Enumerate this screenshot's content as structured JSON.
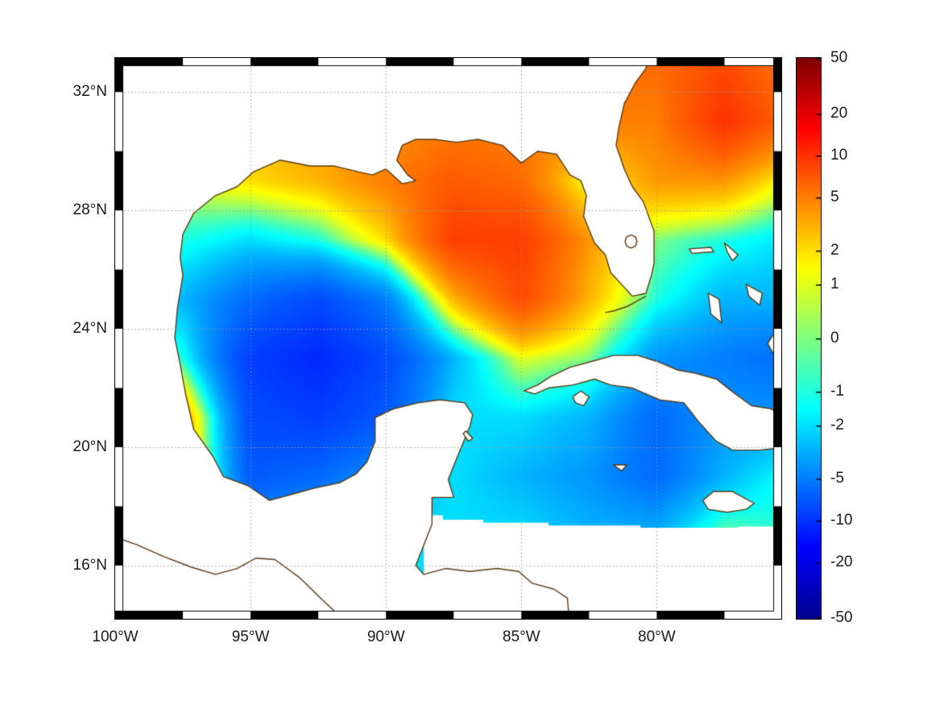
{
  "figure": {
    "background": "#ffffff"
  },
  "map": {
    "extent": {
      "lon_min": -100,
      "lon_max": -75.4,
      "lat_min": 14.2,
      "lat_max": 33.15
    },
    "xticks": [
      {
        "label": "100°W",
        "lon": -100
      },
      {
        "label": "95°W",
        "lon": -95
      },
      {
        "label": "90°W",
        "lon": -90
      },
      {
        "label": "85°W",
        "lon": -85
      },
      {
        "label": "80°W",
        "lon": -80
      }
    ],
    "yticks": [
      {
        "label": "32°N",
        "lat": 32
      },
      {
        "label": "28°N",
        "lat": 28
      },
      {
        "label": "24°N",
        "lat": 24
      },
      {
        "label": "20°N",
        "lat": 20
      },
      {
        "label": "16°N",
        "lat": 16
      }
    ],
    "grid_lons": [
      -95,
      -90,
      -85,
      -80
    ],
    "grid_lats": [
      16,
      20,
      24,
      28,
      32
    ],
    "grid_color": "#9a9a9a",
    "frame_style": "black-white-zebra"
  },
  "colorbar": {
    "ticks": [
      {
        "label": "50",
        "value": 50
      },
      {
        "label": "20",
        "value": 20
      },
      {
        "label": "10",
        "value": 10
      },
      {
        "label": "5",
        "value": 5
      },
      {
        "label": "2",
        "value": 2
      },
      {
        "label": "1",
        "value": 1
      },
      {
        "label": "0",
        "value": 0
      },
      {
        "label": "-1",
        "value": -1
      },
      {
        "label": "-2",
        "value": -2
      },
      {
        "label": "-5",
        "value": -5
      },
      {
        "label": "-10",
        "value": -10
      },
      {
        "label": "-20",
        "value": -20
      },
      {
        "label": "-50",
        "value": -50
      }
    ],
    "scale": "asinh",
    "range": [
      -50,
      50
    ]
  },
  "chart_data": {
    "type": "heatmap",
    "title": "",
    "region": "Gulf of Mexico and northwest Caribbean",
    "colormap": "jet",
    "colormap_stops": [
      [
        0,
        0,
        0,
        143
      ],
      [
        0.125,
        0,
        0,
        255
      ],
      [
        0.375,
        0,
        255,
        255
      ],
      [
        0.625,
        255,
        255,
        0
      ],
      [
        0.875,
        255,
        0,
        0
      ],
      [
        1,
        128,
        0,
        0
      ]
    ],
    "value_scale": "asinh",
    "value_range": [
      -50,
      50
    ],
    "colorbar_ticks": [
      50,
      20,
      10,
      5,
      2,
      1,
      0,
      -1,
      -2,
      -5,
      -10,
      -20,
      -50
    ],
    "extent": {
      "lon_min": -100,
      "lon_max": -75.4,
      "lat_min": 14.2,
      "lat_max": 33.15
    },
    "grid_lons": [
      -100,
      -97.5,
      -95,
      -92.5,
      -90,
      -87.5,
      -85,
      -82.5,
      -80,
      -77.5,
      -75
    ],
    "grid_lats": [
      33,
      31,
      29,
      27,
      25,
      23,
      21,
      19,
      17,
      15
    ],
    "values": [
      [
        5,
        5,
        5,
        5,
        5,
        5,
        5,
        6,
        6,
        8,
        5
      ],
      [
        3,
        3,
        3,
        4,
        4,
        5,
        5,
        5,
        5,
        10,
        6
      ],
      [
        1,
        1,
        2,
        3,
        5,
        7,
        6,
        1,
        4,
        4,
        1
      ],
      [
        0,
        -1,
        -2,
        -1,
        2,
        9,
        9,
        4,
        0,
        -1,
        -2
      ],
      [
        -2,
        -3,
        -6,
        -8,
        -5,
        3,
        8,
        3,
        -1,
        -3,
        -3
      ],
      [
        0,
        -1,
        -9,
        -11,
        -8,
        -3,
        1,
        0,
        -4,
        -5,
        -6
      ],
      [
        1,
        4,
        -8,
        -9,
        -7,
        -2,
        -2,
        -3,
        -6,
        -4,
        -4
      ],
      [
        2,
        4,
        -7,
        -6,
        -4,
        -2,
        -3,
        -4,
        -6,
        -3,
        -1
      ],
      [
        2,
        2,
        -4,
        -3,
        -2,
        -2,
        -2,
        -3,
        -3,
        0,
        -1
      ],
      [
        1,
        0,
        -2,
        -2,
        -2,
        -2,
        -2,
        -2,
        -2,
        -1,
        -1
      ]
    ]
  },
  "geo": {
    "coast_color": "#5a3a12",
    "land_fill": "#ffffff",
    "polygons": [
      {
        "name": "no-data-caribbean-south",
        "fill": true,
        "stroke": false,
        "closed": true,
        "pts": [
          [
            -88.6,
            13.9
          ],
          [
            -88.6,
            17.7
          ],
          [
            -87.9,
            17.7
          ],
          [
            -87.9,
            17.55
          ],
          [
            -86.4,
            17.55
          ],
          [
            -86.4,
            17.45
          ],
          [
            -84.0,
            17.45
          ],
          [
            -84.0,
            17.35
          ],
          [
            -80.6,
            17.35
          ],
          [
            -80.6,
            17.28
          ],
          [
            -77.0,
            17.28
          ],
          [
            -77.0,
            17.32
          ],
          [
            -75.2,
            17.32
          ],
          [
            -75.2,
            13.9
          ]
        ]
      },
      {
        "name": "north-america-mainland",
        "fill": true,
        "stroke": true,
        "closed": true,
        "pts": [
          [
            -100.4,
            33.4
          ],
          [
            -80.2,
            33.4
          ],
          [
            -80.4,
            32.8
          ],
          [
            -80.8,
            32.3
          ],
          [
            -81.2,
            31.6
          ],
          [
            -81.4,
            30.8
          ],
          [
            -81.5,
            30.2
          ],
          [
            -81.2,
            29.4
          ],
          [
            -80.9,
            28.8
          ],
          [
            -80.5,
            28.3
          ],
          [
            -80.1,
            27.3
          ],
          [
            -80.1,
            26.2
          ],
          [
            -80.2,
            25.8
          ],
          [
            -80.4,
            25.2
          ],
          [
            -80.9,
            25.1
          ],
          [
            -81.2,
            25.4
          ],
          [
            -81.7,
            25.9
          ],
          [
            -81.9,
            26.5
          ],
          [
            -82.3,
            26.9
          ],
          [
            -82.7,
            27.8
          ],
          [
            -82.6,
            28.5
          ],
          [
            -82.8,
            29.0
          ],
          [
            -83.2,
            29.2
          ],
          [
            -83.7,
            29.9
          ],
          [
            -84.4,
            30.0
          ],
          [
            -85.0,
            29.6
          ],
          [
            -85.7,
            30.2
          ],
          [
            -86.6,
            30.4
          ],
          [
            -87.4,
            30.3
          ],
          [
            -88.2,
            30.4
          ],
          [
            -88.9,
            30.4
          ],
          [
            -89.4,
            30.2
          ],
          [
            -89.6,
            29.7
          ],
          [
            -89.2,
            29.2
          ],
          [
            -88.9,
            29.0
          ],
          [
            -89.4,
            28.9
          ],
          [
            -90.0,
            29.4
          ],
          [
            -90.5,
            29.2
          ],
          [
            -91.0,
            29.3
          ],
          [
            -91.9,
            29.5
          ],
          [
            -92.8,
            29.5
          ],
          [
            -93.9,
            29.7
          ],
          [
            -94.9,
            29.3
          ],
          [
            -95.5,
            28.8
          ],
          [
            -96.3,
            28.5
          ],
          [
            -97.1,
            27.9
          ],
          [
            -97.5,
            27.2
          ],
          [
            -97.6,
            26.4
          ],
          [
            -97.5,
            25.8
          ],
          [
            -97.7,
            24.7
          ],
          [
            -97.8,
            23.7
          ],
          [
            -97.6,
            22.8
          ],
          [
            -97.4,
            21.8
          ],
          [
            -97.1,
            20.6
          ],
          [
            -96.4,
            19.7
          ],
          [
            -96.0,
            19.0
          ],
          [
            -95.1,
            18.7
          ],
          [
            -94.3,
            18.2
          ],
          [
            -93.5,
            18.4
          ],
          [
            -92.7,
            18.6
          ],
          [
            -91.7,
            18.8
          ],
          [
            -91.1,
            19.1
          ],
          [
            -90.7,
            19.5
          ],
          [
            -90.4,
            20.2
          ],
          [
            -90.4,
            21.0
          ],
          [
            -89.7,
            21.3
          ],
          [
            -88.8,
            21.5
          ],
          [
            -88.0,
            21.6
          ],
          [
            -87.1,
            21.5
          ],
          [
            -86.8,
            21.1
          ],
          [
            -86.9,
            20.7
          ],
          [
            -87.4,
            19.6
          ],
          [
            -87.7,
            18.9
          ],
          [
            -87.5,
            18.3
          ],
          [
            -88.3,
            18.3
          ],
          [
            -88.3,
            17.4
          ],
          [
            -88.9,
            16.0
          ],
          [
            -88.6,
            15.7
          ],
          [
            -87.8,
            15.9
          ],
          [
            -86.9,
            15.8
          ],
          [
            -85.9,
            15.9
          ],
          [
            -85.1,
            15.8
          ],
          [
            -84.6,
            15.4
          ],
          [
            -83.8,
            15.2
          ],
          [
            -83.3,
            14.9
          ],
          [
            -83.2,
            13.8
          ],
          [
            -100.4,
            13.8
          ]
        ]
      },
      {
        "name": "pacific-coast-mexico",
        "fill": false,
        "stroke": true,
        "closed": false,
        "pts": [
          [
            -100.4,
            17.1
          ],
          [
            -99.2,
            16.7
          ],
          [
            -98.2,
            16.3
          ],
          [
            -97.2,
            15.95
          ],
          [
            -96.3,
            15.7
          ],
          [
            -95.5,
            15.9
          ],
          [
            -94.8,
            16.25
          ],
          [
            -94.1,
            16.2
          ],
          [
            -93.2,
            15.6
          ],
          [
            -92.3,
            14.8
          ],
          [
            -91.6,
            14.2
          ],
          [
            -91.2,
            13.8
          ]
        ]
      },
      {
        "name": "cuba",
        "fill": true,
        "stroke": true,
        "closed": true,
        "pts": [
          [
            -84.9,
            21.9
          ],
          [
            -84.4,
            22.1
          ],
          [
            -83.9,
            22.4
          ],
          [
            -83.2,
            22.7
          ],
          [
            -82.4,
            22.9
          ],
          [
            -81.6,
            23.1
          ],
          [
            -80.7,
            23.1
          ],
          [
            -80.0,
            22.9
          ],
          [
            -79.2,
            22.6
          ],
          [
            -78.6,
            22.5
          ],
          [
            -77.8,
            22.3
          ],
          [
            -77.1,
            21.8
          ],
          [
            -76.5,
            21.4
          ],
          [
            -75.8,
            21.3
          ],
          [
            -75.2,
            21.0
          ],
          [
            -75.2,
            20.0
          ],
          [
            -76.2,
            19.9
          ],
          [
            -77.2,
            19.9
          ],
          [
            -77.8,
            20.2
          ],
          [
            -78.4,
            20.8
          ],
          [
            -79.0,
            21.5
          ],
          [
            -79.9,
            21.6
          ],
          [
            -80.9,
            22.0
          ],
          [
            -81.7,
            22.1
          ],
          [
            -82.3,
            22.3
          ],
          [
            -83.1,
            22.1
          ],
          [
            -84.0,
            22.0
          ],
          [
            -84.5,
            21.8
          ]
        ]
      },
      {
        "name": "isla-de-la-juventud",
        "fill": true,
        "stroke": true,
        "closed": true,
        "pts": [
          [
            -83.1,
            21.7
          ],
          [
            -82.8,
            21.9
          ],
          [
            -82.5,
            21.7
          ],
          [
            -82.7,
            21.4
          ],
          [
            -83.0,
            21.5
          ]
        ]
      },
      {
        "name": "jamaica",
        "fill": true,
        "stroke": true,
        "closed": true,
        "pts": [
          [
            -78.3,
            18.2
          ],
          [
            -77.9,
            18.5
          ],
          [
            -77.2,
            18.5
          ],
          [
            -76.4,
            18.1
          ],
          [
            -76.7,
            17.9
          ],
          [
            -77.4,
            17.8
          ],
          [
            -78.1,
            17.9
          ]
        ]
      },
      {
        "name": "grand-cayman",
        "fill": true,
        "stroke": true,
        "closed": true,
        "pts": [
          [
            -81.6,
            19.4
          ],
          [
            -81.1,
            19.4
          ],
          [
            -81.3,
            19.2
          ]
        ]
      },
      {
        "name": "grand-bahama",
        "fill": true,
        "stroke": true,
        "closed": true,
        "pts": [
          [
            -78.8,
            26.7
          ],
          [
            -78.0,
            26.75
          ],
          [
            -77.9,
            26.6
          ],
          [
            -78.7,
            26.55
          ]
        ]
      },
      {
        "name": "abaco",
        "fill": true,
        "stroke": true,
        "closed": true,
        "pts": [
          [
            -77.5,
            26.9
          ],
          [
            -77.0,
            26.5
          ],
          [
            -77.2,
            26.3
          ],
          [
            -77.4,
            26.6
          ]
        ]
      },
      {
        "name": "andros",
        "fill": true,
        "stroke": true,
        "closed": true,
        "pts": [
          [
            -78.1,
            25.2
          ],
          [
            -77.7,
            25.0
          ],
          [
            -77.6,
            24.2
          ],
          [
            -78.0,
            24.5
          ]
        ]
      },
      {
        "name": "eleuthera",
        "fill": true,
        "stroke": true,
        "closed": true,
        "pts": [
          [
            -76.7,
            25.5
          ],
          [
            -76.1,
            25.2
          ],
          [
            -76.2,
            24.8
          ],
          [
            -76.6,
            25.1
          ]
        ]
      },
      {
        "name": "long-island-bahamas",
        "fill": true,
        "stroke": true,
        "closed": true,
        "pts": [
          [
            -75.7,
            23.8
          ],
          [
            -75.3,
            23.2
          ],
          [
            -75.6,
            23.0
          ],
          [
            -75.9,
            23.5
          ]
        ]
      },
      {
        "name": "cozumel",
        "fill": true,
        "stroke": true,
        "closed": true,
        "pts": [
          [
            -87.05,
            20.55
          ],
          [
            -86.8,
            20.3
          ],
          [
            -86.95,
            20.2
          ],
          [
            -87.15,
            20.45
          ]
        ]
      },
      {
        "name": "florida-keys",
        "fill": false,
        "stroke": true,
        "closed": false,
        "pts": [
          [
            -80.4,
            25.1
          ],
          [
            -80.7,
            24.95
          ],
          [
            -81.1,
            24.75
          ],
          [
            -81.6,
            24.6
          ],
          [
            -81.9,
            24.55
          ]
        ]
      },
      {
        "name": "lake-okeechobee",
        "fill": false,
        "stroke": true,
        "closed": true,
        "pts": [
          [
            -80.73,
            26.95
          ],
          [
            -80.79,
            27.11
          ],
          [
            -80.95,
            27.17
          ],
          [
            -81.11,
            27.11
          ],
          [
            -81.17,
            26.95
          ],
          [
            -81.11,
            26.79
          ],
          [
            -80.95,
            26.73
          ],
          [
            -80.79,
            26.79
          ]
        ]
      }
    ]
  }
}
